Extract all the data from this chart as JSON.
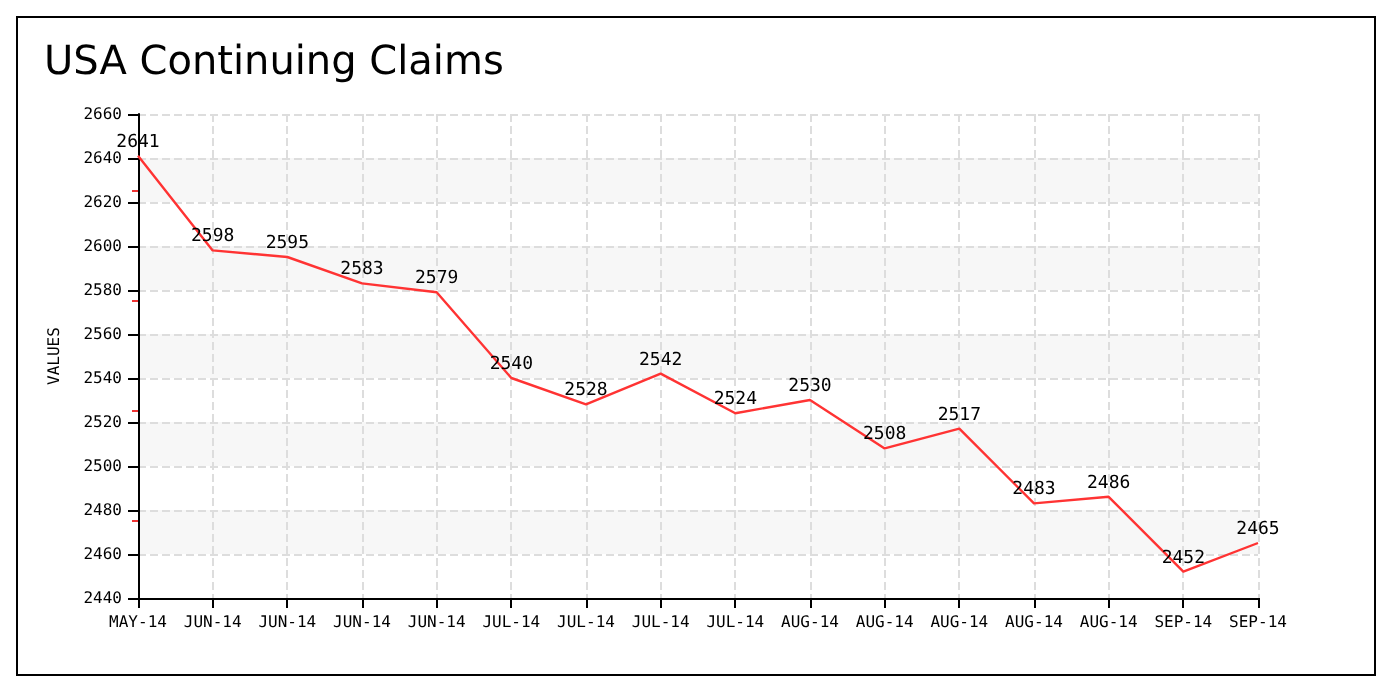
{
  "chart_data": {
    "type": "line",
    "title": "USA Continuing Claims",
    "ylabel": "VALUES",
    "categories": [
      "MAY-14",
      "JUN-14",
      "JUN-14",
      "JUN-14",
      "JUN-14",
      "JUL-14",
      "JUL-14",
      "JUL-14",
      "JUL-14",
      "AUG-14",
      "AUG-14",
      "AUG-14",
      "AUG-14",
      "AUG-14",
      "SEP-14",
      "SEP-14"
    ],
    "series": [
      {
        "color": "#ff3333",
        "values": [
          2641,
          2598,
          2595,
          2583,
          2579,
          2540,
          2528,
          2542,
          2524,
          2530,
          2508,
          2517,
          2483,
          2486,
          2452,
          2465
        ]
      }
    ],
    "ylim": [
      2440,
      2660
    ],
    "yticks": [
      2440,
      2460,
      2480,
      2500,
      2520,
      2540,
      2560,
      2580,
      2600,
      2620,
      2640,
      2660
    ],
    "grid": true,
    "data_labels": true,
    "marker": "none",
    "line_style": "solid"
  }
}
